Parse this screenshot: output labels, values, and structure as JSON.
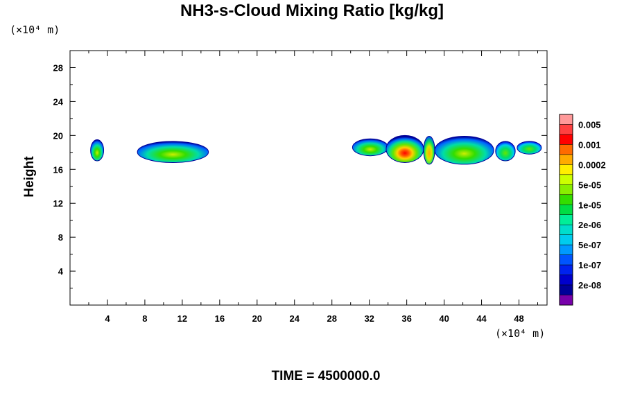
{
  "chart_data": {
    "type": "heatmap",
    "title": "NH3-s-Cloud Mixing Ratio [kg/kg]",
    "ylabel": "Height",
    "x_unit": "(×10⁴ m)",
    "y_unit": "(×10⁴ m)",
    "footer": "TIME = 4500000.0",
    "xlim": [
      0,
      51
    ],
    "ylim": [
      0,
      30
    ],
    "x_ticks": [
      4,
      8,
      12,
      16,
      20,
      24,
      28,
      32,
      36,
      40,
      44,
      48
    ],
    "y_ticks": [
      4,
      8,
      12,
      16,
      20,
      24,
      28
    ],
    "colorbar": {
      "labels": [
        "0.005",
        "0.001",
        "0.0002",
        "5e-05",
        "1e-05",
        "2e-06",
        "5e-07",
        "1e-07",
        "2e-08"
      ],
      "colors": [
        "#ff9999",
        "#ff4040",
        "#ff0000",
        "#ff6a00",
        "#ffaa00",
        "#ffee00",
        "#ccff00",
        "#88ee00",
        "#33dd00",
        "#00dd44",
        "#00ee99",
        "#00ddcc",
        "#00ccee",
        "#0099ff",
        "#0055ff",
        "#0022ee",
        "#0000cc",
        "#000099",
        "#7700aa"
      ]
    },
    "cloud_regions": [
      {
        "x": [
          2.2,
          3.6
        ],
        "y": [
          17.0,
          19.5
        ],
        "peak": "5e-05"
      },
      {
        "x": [
          7.2,
          14.8
        ],
        "y": [
          16.8,
          19.3
        ],
        "peak": "5e-05"
      },
      {
        "x": [
          30.2,
          34.0
        ],
        "y": [
          17.6,
          19.6
        ],
        "peak": "5e-05"
      },
      {
        "x": [
          33.8,
          37.8
        ],
        "y": [
          16.8,
          20.0
        ],
        "peak": "0.001"
      },
      {
        "x": [
          37.8,
          39.0
        ],
        "y": [
          16.6,
          19.9
        ],
        "peak": "0.0002"
      },
      {
        "x": [
          39.0,
          45.3
        ],
        "y": [
          16.6,
          19.9
        ],
        "peak": "5e-05"
      },
      {
        "x": [
          45.5,
          47.6
        ],
        "y": [
          17.0,
          19.3
        ],
        "peak": "1e-05"
      },
      {
        "x": [
          47.8,
          50.4
        ],
        "y": [
          17.8,
          19.3
        ],
        "peak": "1e-05"
      }
    ]
  }
}
